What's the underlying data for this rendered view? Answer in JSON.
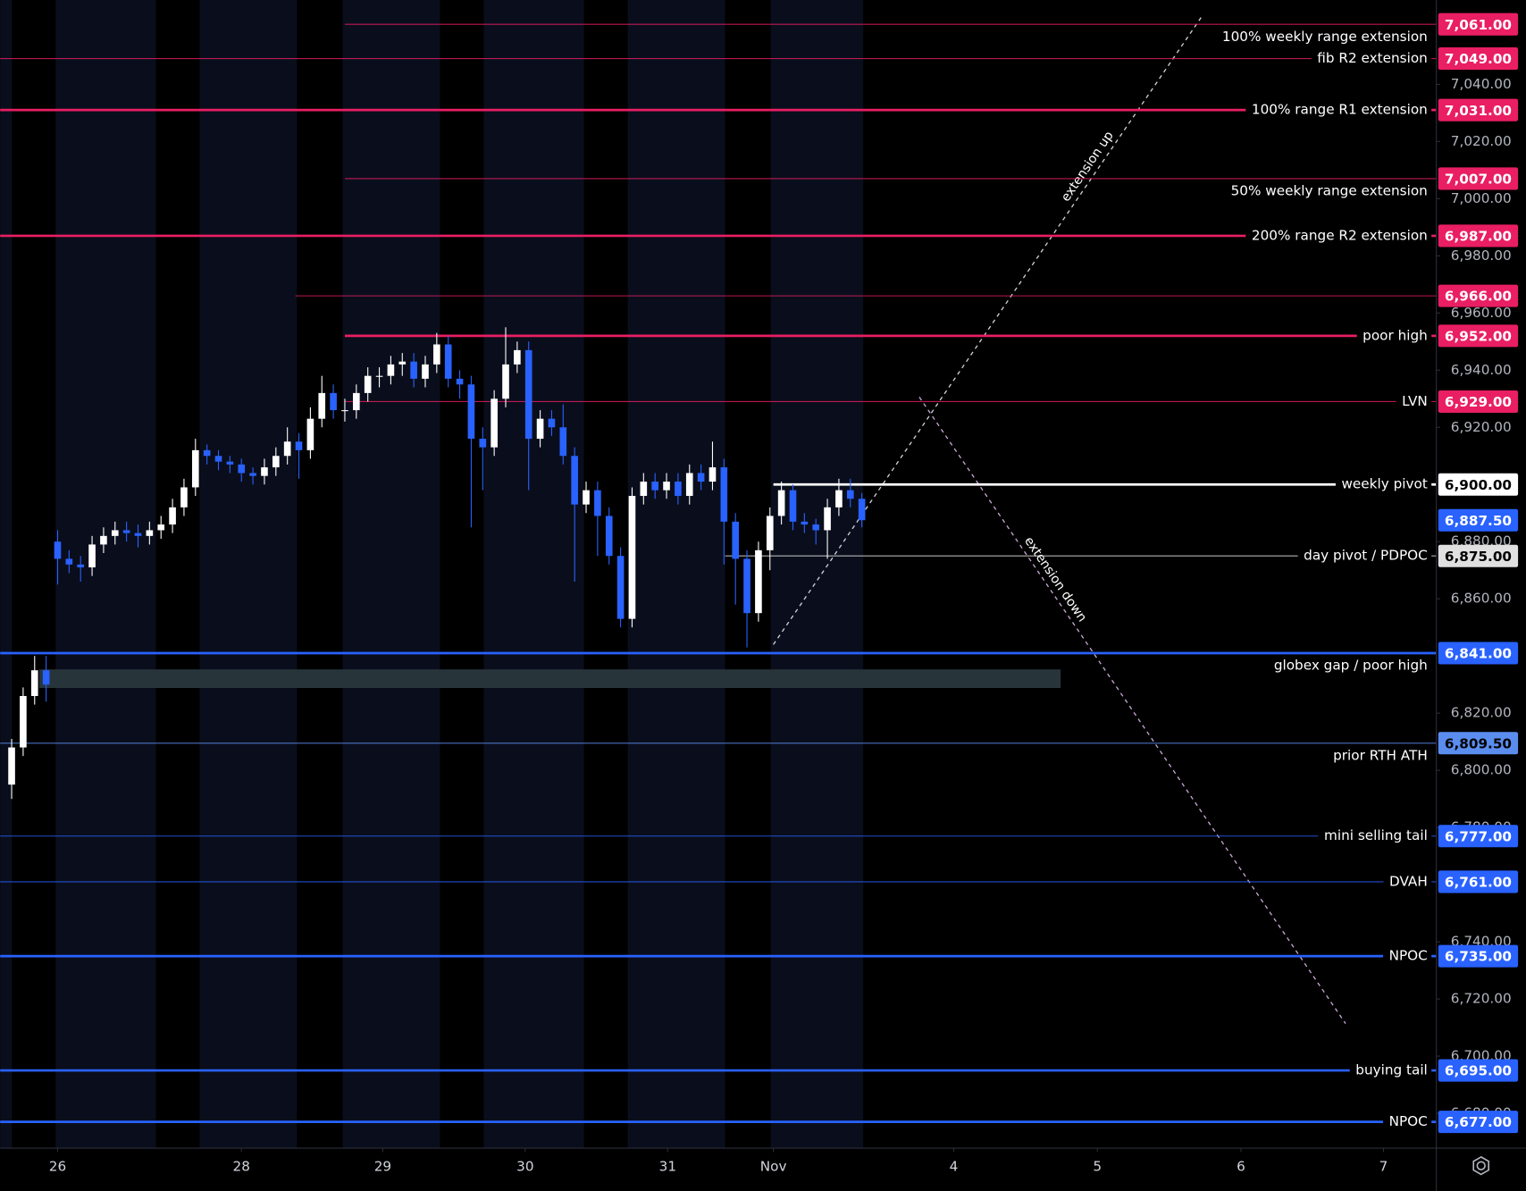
{
  "chart_data": {
    "type": "candlestick",
    "x": [
      -4,
      -3,
      -2,
      -1,
      0,
      1,
      2,
      3,
      4,
      5,
      6,
      7,
      8,
      9,
      10,
      11,
      12,
      13,
      14,
      15,
      16,
      17,
      18,
      19,
      20,
      21,
      22,
      23,
      24,
      25,
      26,
      27,
      28,
      29,
      30,
      31,
      32,
      33,
      34,
      35,
      36,
      37,
      38,
      39,
      40,
      41,
      42,
      43,
      44,
      45,
      46,
      47,
      48,
      49,
      50,
      51,
      52,
      53,
      54,
      55,
      56,
      57,
      58,
      59,
      60,
      61,
      62,
      63,
      64,
      65,
      66,
      67,
      68,
      69,
      70
    ],
    "open": [
      6795,
      6808,
      6826,
      6835,
      6880,
      6874,
      6872,
      6871,
      6879,
      6882,
      6884,
      6883,
      6882,
      6884,
      6886,
      6892,
      6899,
      6912,
      6910,
      6908,
      6907,
      6904,
      6903,
      6906,
      6910,
      6915,
      6912,
      6923,
      6932,
      6926,
      6926,
      6932,
      6938,
      6938,
      6942,
      6943,
      6937,
      6942,
      6949,
      6937,
      6935,
      6916,
      6913,
      6930,
      6942,
      6947,
      6916,
      6923,
      6920,
      6910,
      6893,
      6898,
      6889,
      6875,
      6853,
      6896,
      6901,
      6898,
      6901,
      6896,
      6904,
      6901,
      6906,
      6887,
      6874,
      6855,
      6877,
      6889,
      6898,
      6887,
      6886,
      6884,
      6892,
      6898,
      6895
    ],
    "high": [
      6811,
      6829,
      6840,
      6840,
      6884,
      6877,
      6875,
      6882,
      6885,
      6887,
      6887,
      6886,
      6887,
      6889,
      6895,
      6902,
      6916,
      6914,
      6912,
      6910,
      6909,
      6906,
      6909,
      6913,
      6920,
      6918,
      6927,
      6938,
      6935,
      6930,
      6935,
      6941,
      6941,
      6945,
      6946,
      6946,
      6945,
      6953,
      6952,
      6940,
      6938,
      6920,
      6933,
      6955,
      6950,
      6950,
      6926,
      6926,
      6928,
      6913,
      6901,
      6901,
      6892,
      6878,
      6899,
      6904,
      6904,
      6904,
      6904,
      6907,
      6907,
      6915,
      6909,
      6890,
      6877,
      6880,
      6892,
      6901,
      6900,
      6890,
      6888,
      6895,
      6902,
      6902,
      6897
    ],
    "low": [
      6790,
      6805,
      6823,
      6824,
      6865,
      6869,
      6866,
      6868,
      6876,
      6879,
      6880,
      6878,
      6879,
      6881,
      6883,
      6889,
      6896,
      6907,
      6905,
      6904,
      6901,
      6900,
      6900,
      6903,
      6907,
      6902,
      6909,
      6920,
      6923,
      6922,
      6923,
      6929,
      6934,
      6935,
      6938,
      6934,
      6934,
      6939,
      6934,
      6930,
      6885,
      6898,
      6910,
      6927,
      6939,
      6898,
      6913,
      6917,
      6907,
      6866,
      6890,
      6875,
      6872,
      6850,
      6850,
      6893,
      6895,
      6895,
      6893,
      6893,
      6898,
      6898,
      6872,
      6858,
      6843,
      6852,
      6870,
      6886,
      6884,
      6883,
      6879,
      6874,
      6889,
      6892,
      6885
    ],
    "close": [
      6808,
      6826,
      6835,
      6830,
      6874,
      6872,
      6871,
      6879,
      6882,
      6884,
      6883,
      6882,
      6884,
      6886,
      6892,
      6899,
      6912,
      6910,
      6908,
      6907,
      6904,
      6903,
      6906,
      6910,
      6915,
      6912,
      6923,
      6932,
      6926,
      6926,
      6932,
      6938,
      6938,
      6942,
      6943,
      6937,
      6942,
      6949,
      6937,
      6935,
      6916,
      6913,
      6930,
      6942,
      6947,
      6916,
      6923,
      6920,
      6910,
      6893,
      6898,
      6889,
      6875,
      6853,
      6896,
      6901,
      6898,
      6901,
      6896,
      6904,
      6901,
      6906,
      6887,
      6874,
      6855,
      6877,
      6889,
      6898,
      6887,
      6886,
      6884,
      6892,
      6898,
      6895,
      6887.5
    ],
    "up_color": "#ffffff",
    "down_color": "#2962ff",
    "last_price_label": "6,887.50",
    "last_price_color": "#2962ff",
    "xlim": [
      -5,
      120
    ],
    "xticks": [
      {
        "value": 0,
        "label": "26"
      },
      {
        "value": 16,
        "label": "28"
      },
      {
        "value": 28.3,
        "label": "29"
      },
      {
        "value": 40.7,
        "label": "30"
      },
      {
        "value": 53.1,
        "label": "31"
      },
      {
        "value": 62.3,
        "label": "Nov"
      },
      {
        "value": 78,
        "label": "4"
      },
      {
        "value": 90.5,
        "label": "5"
      },
      {
        "value": 103,
        "label": "6"
      },
      {
        "value": 115.4,
        "label": "7"
      }
    ],
    "ylim": [
      6667.8,
      7069.5
    ],
    "yticks": [
      {
        "value": 7040,
        "label": "7,040.00"
      },
      {
        "value": 7020,
        "label": "7,020.00"
      },
      {
        "value": 7000,
        "label": "7,000.00"
      },
      {
        "value": 6980,
        "label": "6,980.00"
      },
      {
        "value": 6960,
        "label": "6,960.00"
      },
      {
        "value": 6940,
        "label": "6,940.00"
      },
      {
        "value": 6920,
        "label": "6,920.00"
      },
      {
        "value": 6880,
        "label": "6,880.00"
      },
      {
        "value": 6860,
        "label": "6,860.00"
      },
      {
        "value": 6820,
        "label": "6,820.00"
      },
      {
        "value": 6800,
        "label": "6,800.00"
      },
      {
        "value": 6780,
        "label": "6,780.00"
      },
      {
        "value": 6740,
        "label": "6,740.00"
      },
      {
        "value": 6720,
        "label": "6,720.00"
      },
      {
        "value": 6700,
        "label": "6,700.00"
      },
      {
        "value": 6680,
        "label": "6,680.00"
      }
    ],
    "levels": [
      {
        "price": 7061,
        "label": "100% weekly range extension",
        "price_label": "7,061.00",
        "color": "#e91e63",
        "width": 1,
        "x_start": 25,
        "label_below": true
      },
      {
        "price": 7049,
        "label": "fib R2 extension",
        "price_label": "7,049.00",
        "color": "#e91e63",
        "width": 1,
        "x_start": -5
      },
      {
        "price": 7031,
        "label": "100% range R1 extension",
        "price_label": "7,031.00",
        "color": "#e91e63",
        "width": 2.5,
        "x_start": -5
      },
      {
        "price": 7007,
        "label": "50% weekly range extension",
        "price_label": "7,007.00",
        "color": "#e91e63",
        "width": 1,
        "x_start": 25,
        "label_below": true
      },
      {
        "price": 6987,
        "label": "200% range R2 extension",
        "price_label": "6,987.00",
        "color": "#e91e63",
        "width": 2.5,
        "x_start": -5
      },
      {
        "price": 6966,
        "price_label": "6,966.00",
        "color": "#e91e63",
        "width": 1,
        "x_start": 20.7
      },
      {
        "price": 6952,
        "label": "poor high",
        "price_label": "6,952.00",
        "color": "#e91e63",
        "width": 2.5,
        "x_start": 25
      },
      {
        "price": 6929,
        "label": "LVN",
        "price_label": "6,929.00",
        "color": "#e91e63",
        "width": 1,
        "x_start": 25
      },
      {
        "price": 6900,
        "label": "weekly pivot",
        "price_label": "6,900.00",
        "color": "#ffffff",
        "text_color": "#000000",
        "width": 2.5,
        "x_start": 62.3
      },
      {
        "price": 6875,
        "label": "day pivot / PDPOC",
        "price_label": "6,875.00",
        "color": "#e0e0e0",
        "text_color": "#000000",
        "width": 1,
        "x_start": 58.1
      },
      {
        "price": 6841,
        "label": "globex gap / poor high",
        "price_label": "6,841.00",
        "color": "#2962ff",
        "width": 2.5,
        "x_start": -5,
        "label_below": true
      },
      {
        "price": 6809.5,
        "label": "prior RTH ATH",
        "price_label": "6,809.50",
        "color": "#5b8def",
        "text_color": "#000000",
        "width": 1,
        "x_start": -5,
        "label_below": true
      },
      {
        "price": 6777,
        "label": "mini selling tail",
        "price_label": "6,777.00",
        "color": "#2962ff",
        "width": 1,
        "x_start": -5
      },
      {
        "price": 6761,
        "label": "DVAH",
        "price_label": "6,761.00",
        "color": "#2962ff",
        "width": 1,
        "x_start": -5
      },
      {
        "price": 6735,
        "label": "NPOC",
        "price_label": "6,735.00",
        "color": "#2962ff",
        "width": 2.5,
        "x_start": -5
      },
      {
        "price": 6695,
        "label": "buying tail",
        "price_label": "6,695.00",
        "color": "#2962ff",
        "width": 2.5,
        "x_start": -5
      },
      {
        "price": 6677,
        "label": "NPOC",
        "price_label": "6,677.00",
        "color": "#2962ff",
        "width": 2.5,
        "x_start": -5
      }
    ],
    "zones": [
      {
        "top": 6835.3,
        "bottom": 6828.8,
        "x_start": -1.6,
        "x_end": 87.3,
        "color": "#27353b"
      }
    ],
    "trendlines": [
      {
        "label": "extension up",
        "from": [
          62.3,
          6844
        ],
        "to": [
          99.7,
          7064.4
        ]
      },
      {
        "label": "extension down",
        "from": [
          75,
          6930.6
        ],
        "to": [
          112.1,
          6711.4
        ]
      }
    ]
  }
}
